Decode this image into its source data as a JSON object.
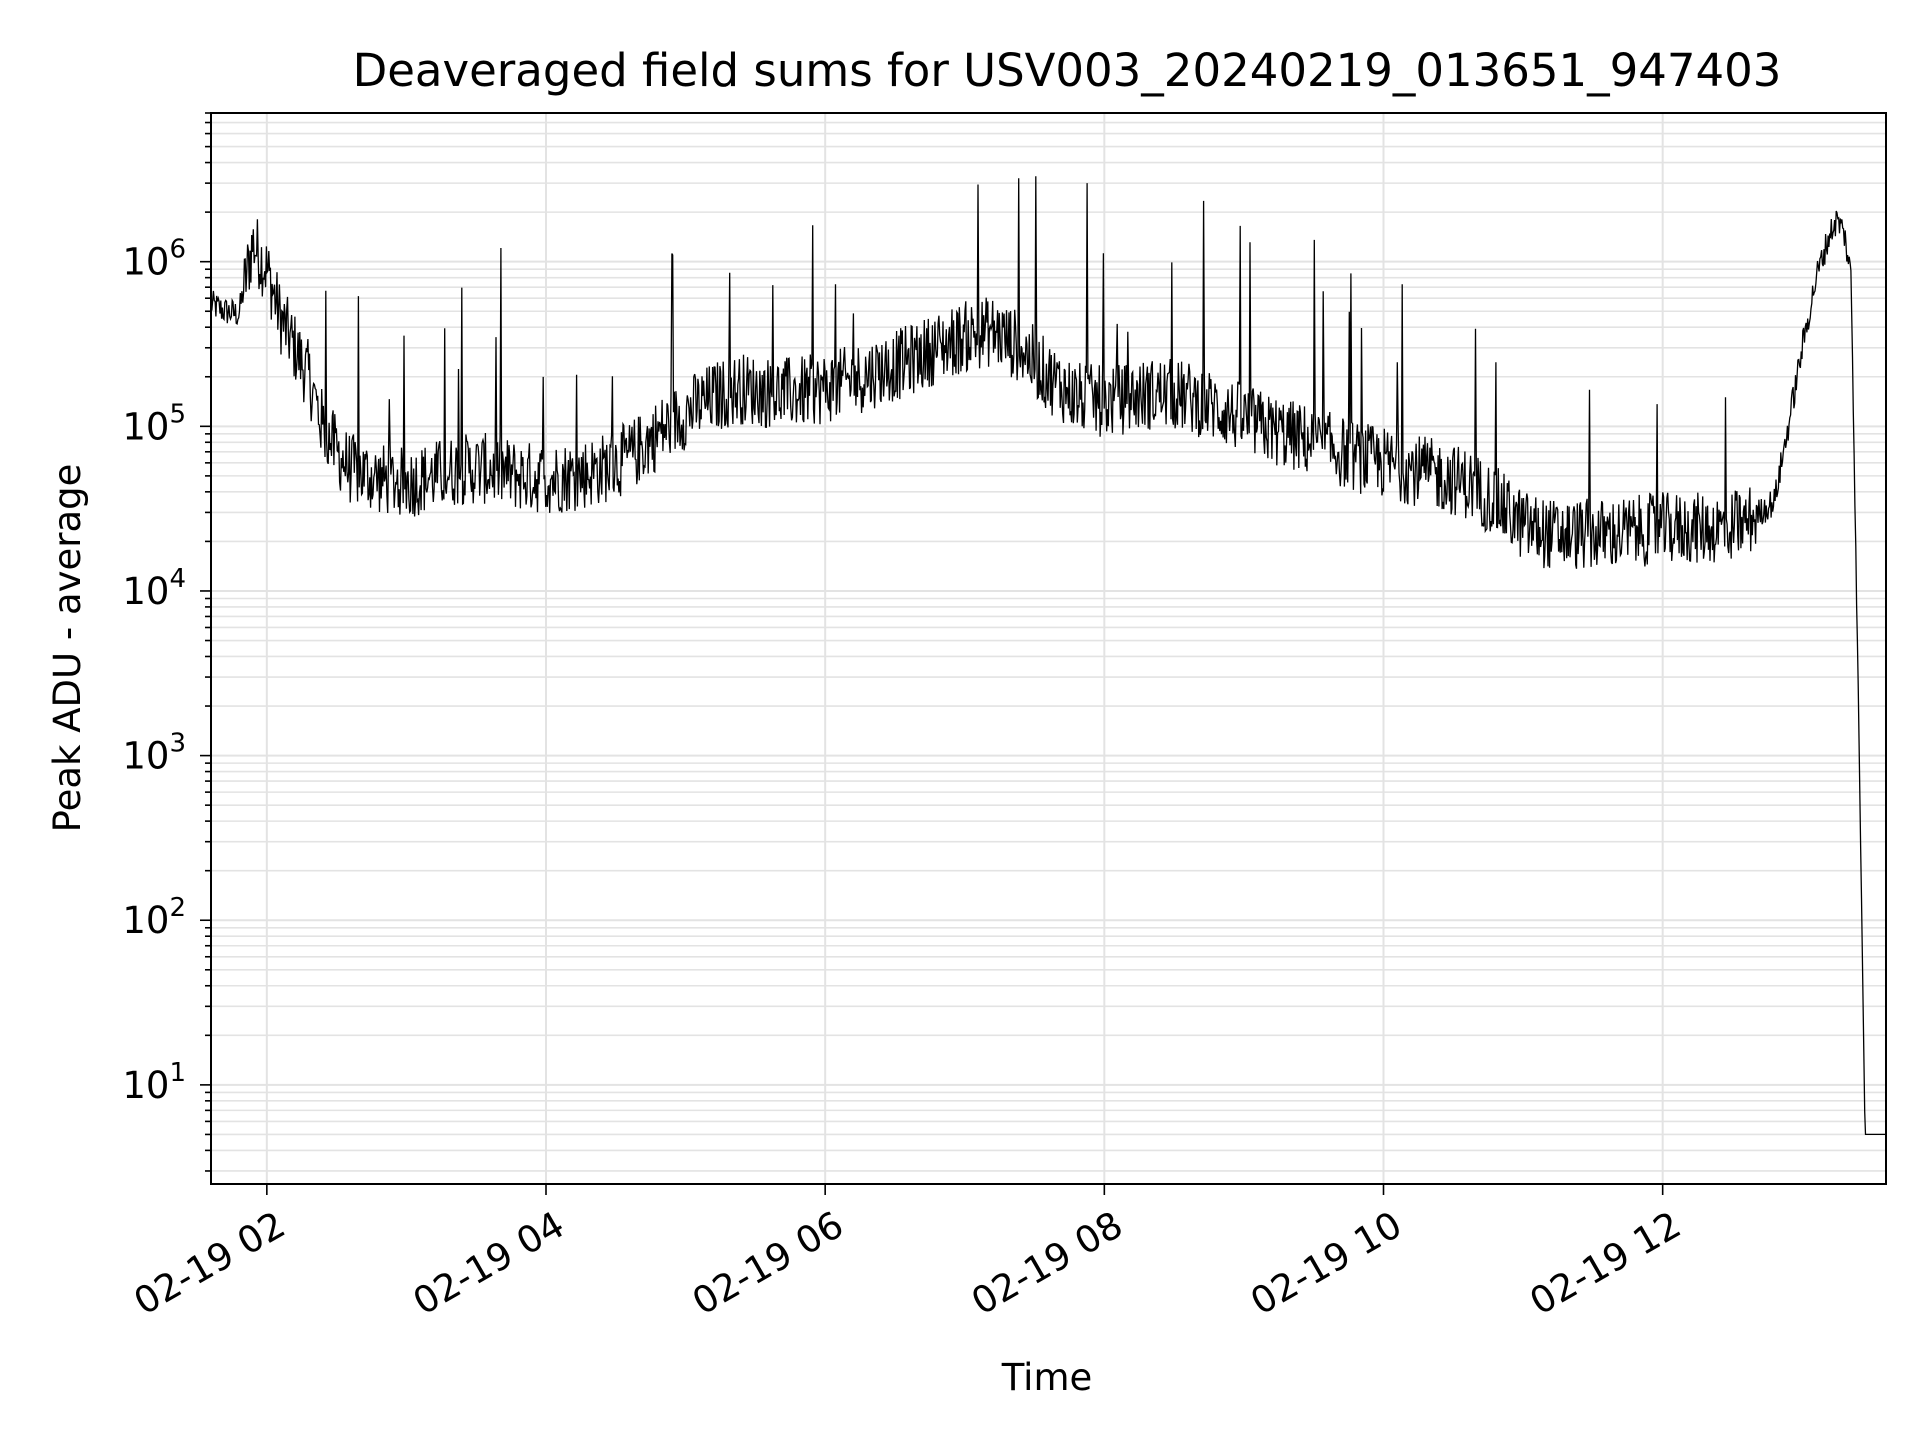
{
  "chart_data": {
    "type": "line",
    "title": "Deaveraged field sums for USV003_20240219_013651_947403",
    "xlabel": "Time",
    "ylabel": "Peak ADU - average",
    "y_scale": "log",
    "ylim": [
      2.5,
      8000000
    ],
    "xlim": [
      "02-19 01:36",
      "02-19 13:36"
    ],
    "grid": "on (major and minor)",
    "legend": "none",
    "line_color": "#000000",
    "x_ticks": [
      {
        "value": "02-19 02:00",
        "label": "02-19 02"
      },
      {
        "value": "02-19 04:00",
        "label": "02-19 04"
      },
      {
        "value": "02-19 06:00",
        "label": "02-19 06"
      },
      {
        "value": "02-19 08:00",
        "label": "02-19 08"
      },
      {
        "value": "02-19 10:00",
        "label": "02-19 10"
      },
      {
        "value": "02-19 12:00",
        "label": "02-19 12"
      }
    ],
    "y_ticks": [
      {
        "value": 10,
        "base": "10",
        "exp": "1"
      },
      {
        "value": 100,
        "base": "10",
        "exp": "2"
      },
      {
        "value": 1000,
        "base": "10",
        "exp": "3"
      },
      {
        "value": 10000,
        "base": "10",
        "exp": "4"
      },
      {
        "value": 100000,
        "base": "10",
        "exp": "5"
      },
      {
        "value": 1000000,
        "base": "10",
        "exp": "6"
      }
    ],
    "series": [
      {
        "x": [
          "01:36",
          "01:42",
          "01:48",
          "01:54",
          "02:00",
          "02:06",
          "02:12",
          "02:18",
          "02:24",
          "02:30",
          "02:36",
          "02:48",
          "03:00",
          "03:12",
          "03:24",
          "03:36",
          "03:48",
          "04:00",
          "04:12",
          "04:24",
          "04:36",
          "04:48",
          "05:00",
          "05:12",
          "05:24",
          "05:36",
          "05:48",
          "06:00",
          "06:12",
          "06:24",
          "06:36",
          "06:48",
          "07:00",
          "07:12",
          "07:24",
          "07:36",
          "07:48",
          "08:00",
          "08:12",
          "08:24",
          "08:36",
          "08:48",
          "09:00",
          "09:12",
          "09:24",
          "09:36",
          "09:48",
          "10:00",
          "10:12",
          "10:24",
          "10:36",
          "10:48",
          "11:00",
          "11:12",
          "11:24",
          "11:36",
          "11:48",
          "12:00",
          "12:12",
          "12:24",
          "12:36",
          "12:48",
          "12:54",
          "13:00",
          "13:06",
          "13:12",
          "13:15",
          "13:18",
          "13:21",
          "13:24",
          "13:27",
          "13:30",
          "13:33",
          "13:36"
        ],
        "y": [
          550000,
          500000,
          480000,
          1300000,
          900000,
          450000,
          300000,
          200000,
          100000,
          70000,
          55000,
          48000,
          45000,
          50000,
          55000,
          55000,
          50000,
          48000,
          50000,
          55000,
          65000,
          90000,
          120000,
          150000,
          170000,
          160000,
          160000,
          170000,
          190000,
          220000,
          250000,
          300000,
          350000,
          380000,
          300000,
          200000,
          150000,
          140000,
          150000,
          160000,
          150000,
          130000,
          110000,
          95000,
          85000,
          75000,
          65000,
          60000,
          55000,
          50000,
          45000,
          35000,
          25000,
          22000,
          22000,
          22000,
          23000,
          24000,
          24000,
          24000,
          26000,
          35000,
          100000,
          300000,
          800000,
          1500000,
          1800000,
          1500000,
          800000,
          3000,
          5,
          5,
          5,
          5
        ]
      }
    ]
  }
}
